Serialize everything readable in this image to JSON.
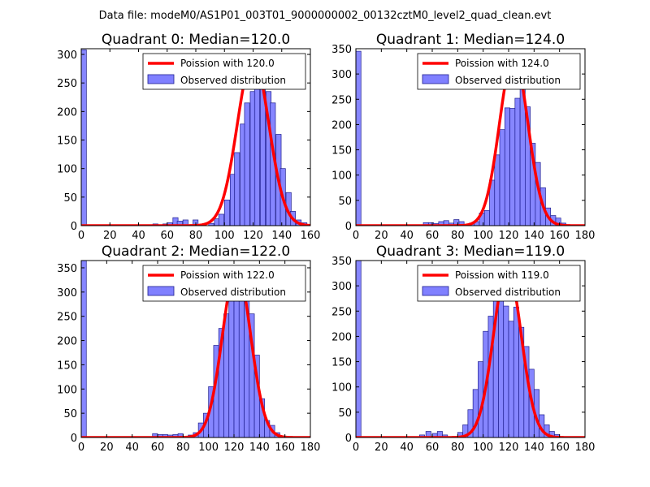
{
  "figure": {
    "suptitle": "Data file: modeM0/AS1P01_003T01_9000000002_00132cztM0_level2_quad_clean.evt"
  },
  "colors": {
    "hist_fill": "#8080ff",
    "hist_edge": "#1f1f8f",
    "poisson": "#ff0000"
  },
  "chart_data": [
    {
      "type": "bar",
      "title": "Quadrant 0: Median=120.0",
      "xlim": [
        0,
        160
      ],
      "ylim": [
        0,
        310
      ],
      "xticks": [
        "0",
        "20",
        "40",
        "60",
        "80",
        "100",
        "120",
        "140",
        "160"
      ],
      "yticks": [
        "0",
        "50",
        "100",
        "150",
        "200",
        "250",
        "300"
      ],
      "xtick_values": [
        0,
        20,
        40,
        60,
        80,
        100,
        120,
        140,
        160
      ],
      "ytick_values": [
        0,
        50,
        100,
        150,
        200,
        250,
        300
      ],
      "legend": [
        "Poission with 120.0",
        "Observed distribution"
      ],
      "bin_width": 3.6,
      "bins": [
        {
          "x": 0,
          "y": 308
        },
        {
          "x": 50,
          "y": 3
        },
        {
          "x": 57,
          "y": 3
        },
        {
          "x": 60,
          "y": 5
        },
        {
          "x": 64,
          "y": 14
        },
        {
          "x": 67,
          "y": 8
        },
        {
          "x": 71,
          "y": 10
        },
        {
          "x": 78,
          "y": 10
        },
        {
          "x": 89,
          "y": 4
        },
        {
          "x": 93,
          "y": 12
        },
        {
          "x": 96,
          "y": 20
        },
        {
          "x": 100,
          "y": 45
        },
        {
          "x": 104,
          "y": 90
        },
        {
          "x": 107,
          "y": 128
        },
        {
          "x": 111,
          "y": 178
        },
        {
          "x": 114,
          "y": 215
        },
        {
          "x": 118,
          "y": 235
        },
        {
          "x": 121,
          "y": 262
        },
        {
          "x": 125,
          "y": 262
        },
        {
          "x": 129,
          "y": 235
        },
        {
          "x": 132,
          "y": 215
        },
        {
          "x": 136,
          "y": 160
        },
        {
          "x": 139,
          "y": 100
        },
        {
          "x": 143,
          "y": 58
        },
        {
          "x": 146,
          "y": 25
        },
        {
          "x": 150,
          "y": 10
        },
        {
          "x": 154,
          "y": 5
        }
      ],
      "poisson_mean": 120.0,
      "poisson_peak": 295
    },
    {
      "type": "bar",
      "title": "Quadrant 1: Median=124.0",
      "xlim": [
        0,
        180
      ],
      "ylim": [
        0,
        350
      ],
      "xticks": [
        "0",
        "20",
        "40",
        "60",
        "80",
        "100",
        "120",
        "140",
        "160",
        "180"
      ],
      "yticks": [
        "0",
        "50",
        "100",
        "150",
        "200",
        "250",
        "300",
        "350"
      ],
      "xtick_values": [
        0,
        20,
        40,
        60,
        80,
        100,
        120,
        140,
        160,
        180
      ],
      "ytick_values": [
        0,
        50,
        100,
        150,
        200,
        250,
        300,
        350
      ],
      "legend": [
        "Poission with 124.0",
        "Observed distribution"
      ],
      "bin_width": 4,
      "bins": [
        {
          "x": 0,
          "y": 345
        },
        {
          "x": 53,
          "y": 6
        },
        {
          "x": 57,
          "y": 6
        },
        {
          "x": 61,
          "y": 4
        },
        {
          "x": 65,
          "y": 8
        },
        {
          "x": 69,
          "y": 10
        },
        {
          "x": 73,
          "y": 5
        },
        {
          "x": 77,
          "y": 12
        },
        {
          "x": 81,
          "y": 8
        },
        {
          "x": 89,
          "y": 5
        },
        {
          "x": 93,
          "y": 8
        },
        {
          "x": 97,
          "y": 25
        },
        {
          "x": 101,
          "y": 30
        },
        {
          "x": 105,
          "y": 90
        },
        {
          "x": 109,
          "y": 140
        },
        {
          "x": 113,
          "y": 190
        },
        {
          "x": 117,
          "y": 233
        },
        {
          "x": 121,
          "y": 232
        },
        {
          "x": 125,
          "y": 252
        },
        {
          "x": 129,
          "y": 278
        },
        {
          "x": 133,
          "y": 235
        },
        {
          "x": 137,
          "y": 163
        },
        {
          "x": 141,
          "y": 125
        },
        {
          "x": 145,
          "y": 75
        },
        {
          "x": 149,
          "y": 35
        },
        {
          "x": 153,
          "y": 20
        },
        {
          "x": 157,
          "y": 15
        },
        {
          "x": 161,
          "y": 5
        }
      ],
      "poisson_mean": 124.0,
      "poisson_peak": 335
    },
    {
      "type": "bar",
      "title": "Quadrant 2: Median=122.0",
      "xlim": [
        0,
        180
      ],
      "ylim": [
        0,
        365
      ],
      "xticks": [
        "0",
        "20",
        "40",
        "60",
        "80",
        "100",
        "120",
        "140",
        "160",
        "180"
      ],
      "yticks": [
        "0",
        "50",
        "100",
        "150",
        "200",
        "250",
        "300",
        "350"
      ],
      "xtick_values": [
        0,
        20,
        40,
        60,
        80,
        100,
        120,
        140,
        160,
        180
      ],
      "ytick_values": [
        0,
        50,
        100,
        150,
        200,
        250,
        300,
        350
      ],
      "legend": [
        "Poission with 122.0",
        "Observed distribution"
      ],
      "bin_width": 4,
      "bins": [
        {
          "x": 0,
          "y": 365
        },
        {
          "x": 56,
          "y": 8
        },
        {
          "x": 60,
          "y": 6
        },
        {
          "x": 64,
          "y": 6
        },
        {
          "x": 68,
          "y": 5
        },
        {
          "x": 72,
          "y": 6
        },
        {
          "x": 76,
          "y": 8
        },
        {
          "x": 84,
          "y": 5
        },
        {
          "x": 88,
          "y": 10
        },
        {
          "x": 92,
          "y": 30
        },
        {
          "x": 96,
          "y": 50
        },
        {
          "x": 100,
          "y": 105
        },
        {
          "x": 104,
          "y": 190
        },
        {
          "x": 108,
          "y": 225
        },
        {
          "x": 112,
          "y": 255
        },
        {
          "x": 116,
          "y": 295
        },
        {
          "x": 120,
          "y": 315
        },
        {
          "x": 124,
          "y": 285
        },
        {
          "x": 128,
          "y": 290
        },
        {
          "x": 132,
          "y": 255
        },
        {
          "x": 136,
          "y": 170
        },
        {
          "x": 140,
          "y": 80
        },
        {
          "x": 144,
          "y": 35
        },
        {
          "x": 148,
          "y": 25
        },
        {
          "x": 152,
          "y": 10
        }
      ],
      "poisson_mean": 122.0,
      "poisson_peak": 350
    },
    {
      "type": "bar",
      "title": "Quadrant 3: Median=119.0",
      "xlim": [
        0,
        180
      ],
      "ylim": [
        0,
        350
      ],
      "xticks": [
        "0",
        "20",
        "40",
        "60",
        "80",
        "100",
        "120",
        "140",
        "160",
        "180"
      ],
      "yticks": [
        "0",
        "50",
        "100",
        "150",
        "200",
        "250",
        "300",
        "350"
      ],
      "xtick_values": [
        0,
        20,
        40,
        60,
        80,
        100,
        120,
        140,
        160,
        180
      ],
      "ytick_values": [
        0,
        50,
        100,
        150,
        200,
        250,
        300,
        350
      ],
      "legend": [
        "Poission with 119.0",
        "Observed distribution"
      ],
      "bin_width": 4,
      "bins": [
        {
          "x": 0,
          "y": 350
        },
        {
          "x": 50,
          "y": 5
        },
        {
          "x": 55,
          "y": 12
        },
        {
          "x": 60,
          "y": 8
        },
        {
          "x": 64,
          "y": 12
        },
        {
          "x": 68,
          "y": 5
        },
        {
          "x": 80,
          "y": 10
        },
        {
          "x": 84,
          "y": 25
        },
        {
          "x": 88,
          "y": 55
        },
        {
          "x": 92,
          "y": 95
        },
        {
          "x": 96,
          "y": 150
        },
        {
          "x": 100,
          "y": 210
        },
        {
          "x": 104,
          "y": 240
        },
        {
          "x": 108,
          "y": 275
        },
        {
          "x": 112,
          "y": 300
        },
        {
          "x": 116,
          "y": 260
        },
        {
          "x": 120,
          "y": 230
        },
        {
          "x": 124,
          "y": 258
        },
        {
          "x": 128,
          "y": 218
        },
        {
          "x": 132,
          "y": 180
        },
        {
          "x": 136,
          "y": 135
        },
        {
          "x": 140,
          "y": 95
        },
        {
          "x": 144,
          "y": 45
        },
        {
          "x": 148,
          "y": 25
        },
        {
          "x": 152,
          "y": 12
        },
        {
          "x": 156,
          "y": 6
        }
      ],
      "poisson_mean": 119.0,
      "poisson_peak": 335
    }
  ]
}
